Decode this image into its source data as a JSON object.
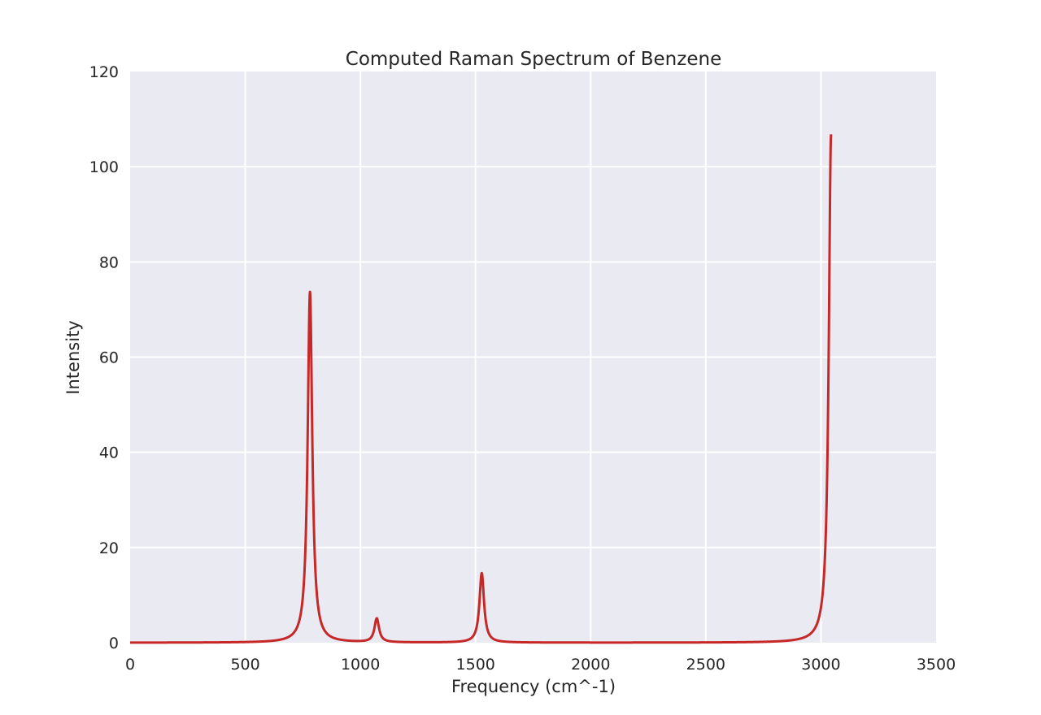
{
  "chart_data": {
    "type": "line",
    "title": "Computed Raman Spectrum of Benzene",
    "xlabel": "Frequency (cm^-1)",
    "ylabel": "Intensity",
    "xlim": [
      0,
      3500
    ],
    "ylim": [
      0,
      120
    ],
    "xticks": [
      "0",
      "500",
      "1000",
      "1500",
      "2000",
      "2500",
      "3000",
      "3500"
    ],
    "yticks": [
      "0",
      "20",
      "40",
      "60",
      "80",
      "100",
      "120"
    ],
    "grid": true,
    "legend": "none",
    "colors": {
      "background": "#eaeaf2",
      "grid": "#ffffff",
      "line": "#c62828"
    },
    "series": [
      {
        "peaks": [
          {
            "x": 781,
            "y": 73.7
          },
          {
            "x": 1071,
            "y": 5.0
          },
          {
            "x": 1527,
            "y": 14.6
          },
          {
            "x": 3044,
            "y": 106.8
          }
        ]
      }
    ]
  }
}
